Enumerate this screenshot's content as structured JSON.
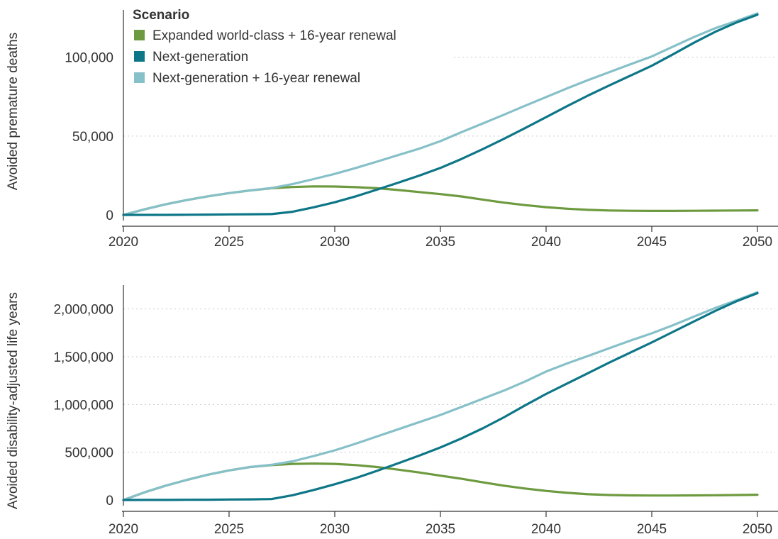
{
  "legend": {
    "title": "Scenario"
  },
  "colors": {
    "expanded": "#6e9a3f",
    "nextgen": "#0d7687",
    "nextgen_renewal": "#86c0c8"
  },
  "chart_data": [
    {
      "type": "line",
      "title": "",
      "xlabel": "",
      "ylabel": "Avoided premature deaths",
      "xlim": [
        2020,
        2050
      ],
      "ylim": [
        0,
        130000
      ],
      "x_ticks": [
        2020,
        2025,
        2030,
        2035,
        2040,
        2045,
        2050
      ],
      "x_tick_labels": [
        "2020",
        "2025",
        "2030",
        "2035",
        "2040",
        "2045",
        "2050"
      ],
      "y_ticks": [
        0,
        50000,
        100000
      ],
      "y_tick_labels": [
        "0",
        "50,000",
        "100,000"
      ],
      "grid": true,
      "legend_position": "top-left",
      "series": [
        {
          "name": "Expanded world-class + 16-year renewal",
          "x": [
            2020,
            2021,
            2022,
            2023,
            2024,
            2025,
            2026,
            2027,
            2028,
            2029,
            2030,
            2031,
            2032,
            2033,
            2034,
            2035,
            2036,
            2037,
            2038,
            2039,
            2040,
            2041,
            2042,
            2043,
            2044,
            2045,
            2046,
            2047,
            2048,
            2049,
            2050
          ],
          "values": [
            0,
            3500,
            6700,
            9400,
            11800,
            13800,
            15500,
            16900,
            17700,
            18100,
            18000,
            17600,
            16900,
            15800,
            14500,
            13200,
            11700,
            9700,
            7800,
            6200,
            4900,
            3900,
            3200,
            2800,
            2600,
            2500,
            2500,
            2600,
            2700,
            2800,
            2900
          ]
        },
        {
          "name": "Next-generation",
          "x": [
            2020,
            2021,
            2022,
            2023,
            2024,
            2025,
            2026,
            2027,
            2028,
            2029,
            2030,
            2031,
            2032,
            2033,
            2034,
            2035,
            2036,
            2037,
            2038,
            2039,
            2040,
            2041,
            2042,
            2043,
            2044,
            2045,
            2046,
            2047,
            2048,
            2049,
            2050
          ],
          "values": [
            0,
            0,
            0,
            100,
            200,
            300,
            400,
            500,
            2000,
            4800,
            8000,
            11800,
            16000,
            20400,
            24900,
            29800,
            35500,
            41700,
            48200,
            55000,
            62000,
            69000,
            75800,
            82200,
            88400,
            94600,
            101800,
            109200,
            116100,
            122000,
            127000
          ]
        },
        {
          "name": "Next-generation + 16-year renewal",
          "x": [
            2020,
            2021,
            2022,
            2023,
            2024,
            2025,
            2026,
            2027,
            2028,
            2029,
            2030,
            2031,
            2032,
            2033,
            2034,
            2035,
            2036,
            2037,
            2038,
            2039,
            2040,
            2041,
            2042,
            2043,
            2044,
            2045,
            2046,
            2047,
            2048,
            2049,
            2050
          ],
          "values": [
            0,
            3500,
            6700,
            9400,
            11800,
            13800,
            15500,
            17000,
            19500,
            22700,
            26000,
            29800,
            33800,
            37900,
            42000,
            46800,
            52500,
            58000,
            63500,
            69200,
            74700,
            80300,
            85600,
            90600,
            95600,
            100500,
            106700,
            112800,
            118400,
            123000,
            127800
          ]
        }
      ]
    },
    {
      "type": "line",
      "title": "",
      "xlabel": "",
      "ylabel": "Avoided disability-adjusted life years",
      "xlim": [
        2020,
        2050
      ],
      "ylim": [
        0,
        2250000
      ],
      "x_ticks": [
        2020,
        2025,
        2030,
        2035,
        2040,
        2045,
        2050
      ],
      "x_tick_labels": [
        "2020",
        "2025",
        "2030",
        "2035",
        "2040",
        "2045",
        "2050"
      ],
      "y_ticks": [
        0,
        500000,
        1000000,
        1500000,
        2000000
      ],
      "y_tick_labels": [
        "0",
        "500,000",
        "1,000,000",
        "1,500,000",
        "2,000,000"
      ],
      "grid": true,
      "series": [
        {
          "name": "Expanded world-class + 16-year renewal",
          "x": [
            2020,
            2021,
            2022,
            2023,
            2024,
            2025,
            2026,
            2027,
            2028,
            2029,
            2030,
            2031,
            2032,
            2033,
            2034,
            2035,
            2036,
            2037,
            2038,
            2039,
            2040,
            2041,
            2042,
            2043,
            2044,
            2045,
            2046,
            2047,
            2048,
            2049,
            2050
          ],
          "values": [
            0,
            80000,
            150000,
            210000,
            265000,
            310000,
            345000,
            365000,
            378000,
            382000,
            378000,
            365000,
            345000,
            318000,
            288000,
            255000,
            222000,
            185000,
            150000,
            120000,
            95000,
            75000,
            60000,
            52000,
            48000,
            47000,
            47000,
            48000,
            50000,
            52000,
            55000
          ]
        },
        {
          "name": "Next-generation",
          "x": [
            2020,
            2021,
            2022,
            2023,
            2024,
            2025,
            2026,
            2027,
            2028,
            2029,
            2030,
            2031,
            2032,
            2033,
            2034,
            2035,
            2036,
            2037,
            2038,
            2039,
            2040,
            2041,
            2042,
            2043,
            2044,
            2045,
            2046,
            2047,
            2048,
            2049,
            2050
          ],
          "values": [
            0,
            500,
            1000,
            2000,
            3000,
            5000,
            7000,
            10000,
            50000,
            105000,
            165000,
            230000,
            305000,
            385000,
            465000,
            550000,
            645000,
            750000,
            865000,
            990000,
            1110000,
            1220000,
            1330000,
            1440000,
            1545000,
            1650000,
            1760000,
            1870000,
            1980000,
            2080000,
            2165000
          ]
        },
        {
          "name": "Next-generation + 16-year renewal",
          "x": [
            2020,
            2021,
            2022,
            2023,
            2024,
            2025,
            2026,
            2027,
            2028,
            2029,
            2030,
            2031,
            2032,
            2033,
            2034,
            2035,
            2036,
            2037,
            2038,
            2039,
            2040,
            2041,
            2042,
            2043,
            2044,
            2045,
            2046,
            2047,
            2048,
            2049,
            2050
          ],
          "values": [
            0,
            80000,
            150000,
            210000,
            265000,
            310000,
            345000,
            368000,
            405000,
            460000,
            520000,
            590000,
            665000,
            740000,
            815000,
            890000,
            975000,
            1060000,
            1145000,
            1240000,
            1345000,
            1430000,
            1510000,
            1590000,
            1670000,
            1745000,
            1830000,
            1920000,
            2010000,
            2090000,
            2175000
          ]
        }
      ]
    }
  ]
}
